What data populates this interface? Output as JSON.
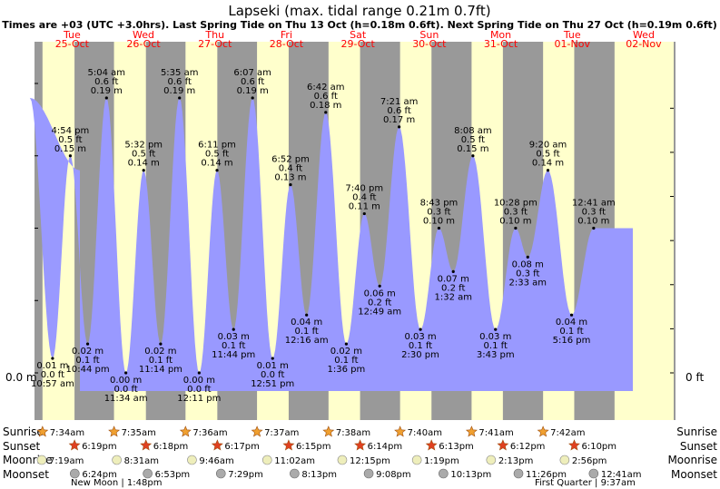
{
  "title": "Lapseki (max. tidal range 0.21m 0.7ft)",
  "subtitle": "Times are +03 (UTC +3.0hrs). Last Spring Tide on Thu 13 Oct (h=0.18m 0.6ft). Next Spring Tide on Thu 27 Oct (h=0.19m 0.6ft)",
  "colors": {
    "night": "#999999",
    "day": "#ffffcc",
    "tide_fill": "#9999ff",
    "day_label": "#ff0000",
    "sun_icon": "#f0a030",
    "sunset_icon": "#e04020",
    "moon_icon": "#eeeebb",
    "moonset_icon": "#aaaaaa"
  },
  "axis": {
    "left_zero_label": "0.0 m",
    "right_zero_label": "0 ft"
  },
  "row_labels": {
    "sunrise": "Sunrise",
    "sunset": "Sunset",
    "moonrise": "Moonrise",
    "moonset": "Moonset"
  },
  "chart_data": {
    "type": "area",
    "y_unit": "m",
    "ylim": [
      0,
      0.21
    ],
    "days": [
      {
        "dow": "Tue",
        "date": "25-Oct"
      },
      {
        "dow": "Wed",
        "date": "26-Oct"
      },
      {
        "dow": "Thu",
        "date": "27-Oct"
      },
      {
        "dow": "Fri",
        "date": "28-Oct"
      },
      {
        "dow": "Sat",
        "date": "29-Oct"
      },
      {
        "dow": "Sun",
        "date": "30-Oct"
      },
      {
        "dow": "Mon",
        "date": "31-Oct"
      },
      {
        "dow": "Tue",
        "date": "01-Nov"
      },
      {
        "dow": "Wed",
        "date": "02-Nov"
      }
    ],
    "tides": [
      {
        "type": "low",
        "day": 0,
        "time": "10:57 am",
        "m": "0.01 m",
        "ft": "0.0 ft",
        "value": 0.01
      },
      {
        "type": "high",
        "day": 0,
        "time": "4:54 pm",
        "ft": "0.5 ft",
        "m": "0.15 m",
        "value": 0.15
      },
      {
        "type": "low",
        "day": 0,
        "time": "10:44 pm",
        "m": "0.02 m",
        "ft": "0.1 ft",
        "value": 0.02
      },
      {
        "type": "high",
        "day": 1,
        "time": "5:04 am",
        "ft": "0.6 ft",
        "m": "0.19 m",
        "value": 0.19
      },
      {
        "type": "low",
        "day": 1,
        "time": "11:34 am",
        "m": "0.00 m",
        "ft": "0.0 ft",
        "value": 0.0
      },
      {
        "type": "high",
        "day": 1,
        "time": "5:32 pm",
        "ft": "0.5 ft",
        "m": "0.14 m",
        "value": 0.14
      },
      {
        "type": "low",
        "day": 1,
        "time": "11:14 pm",
        "m": "0.02 m",
        "ft": "0.1 ft",
        "value": 0.02
      },
      {
        "type": "high",
        "day": 2,
        "time": "5:35 am",
        "ft": "0.6 ft",
        "m": "0.19 m",
        "value": 0.19
      },
      {
        "type": "low",
        "day": 2,
        "time": "12:11 pm",
        "m": "0.00 m",
        "ft": "0.0 ft",
        "value": 0.0
      },
      {
        "type": "high",
        "day": 2,
        "time": "6:11 pm",
        "ft": "0.5 ft",
        "m": "0.14 m",
        "value": 0.14
      },
      {
        "type": "low",
        "day": 2,
        "time": "11:44 pm",
        "m": "0.03 m",
        "ft": "0.1 ft",
        "value": 0.03
      },
      {
        "type": "high",
        "day": 3,
        "time": "6:07 am",
        "ft": "0.6 ft",
        "m": "0.19 m",
        "value": 0.19
      },
      {
        "type": "low",
        "day": 3,
        "time": "12:51 pm",
        "m": "0.01 m",
        "ft": "0.0 ft",
        "value": 0.01
      },
      {
        "type": "high",
        "day": 3,
        "time": "6:52 pm",
        "ft": "0.4 ft",
        "m": "0.13 m",
        "value": 0.13
      },
      {
        "type": "low",
        "day": 4,
        "time": "12:16 am",
        "m": "0.04 m",
        "ft": "0.1 ft",
        "value": 0.04
      },
      {
        "type": "high",
        "day": 4,
        "time": "6:42 am",
        "ft": "0.6 ft",
        "m": "0.18 m",
        "value": 0.18
      },
      {
        "type": "low",
        "day": 4,
        "time": "1:36 pm",
        "m": "0.02 m",
        "ft": "0.1 ft",
        "value": 0.02
      },
      {
        "type": "high",
        "day": 4,
        "time": "7:40 pm",
        "ft": "0.4 ft",
        "m": "0.11 m",
        "value": 0.11
      },
      {
        "type": "low",
        "day": 5,
        "time": "12:49 am",
        "m": "0.06 m",
        "ft": "0.2 ft",
        "value": 0.06
      },
      {
        "type": "high",
        "day": 5,
        "time": "7:21 am",
        "ft": "0.6 ft",
        "m": "0.17 m",
        "value": 0.17
      },
      {
        "type": "low",
        "day": 5,
        "time": "2:30 pm",
        "m": "0.03 m",
        "ft": "0.1 ft",
        "value": 0.03
      },
      {
        "type": "high",
        "day": 5,
        "time": "8:43 pm",
        "ft": "0.3 ft",
        "m": "0.10 m",
        "value": 0.1
      },
      {
        "type": "low",
        "day": 6,
        "time": "1:32 am",
        "m": "0.07 m",
        "ft": "0.2 ft",
        "value": 0.07
      },
      {
        "type": "high",
        "day": 6,
        "time": "8:08 am",
        "ft": "0.5 ft",
        "m": "0.15 m",
        "value": 0.15
      },
      {
        "type": "low",
        "day": 6,
        "time": "3:43 pm",
        "m": "0.03 m",
        "ft": "0.1 ft",
        "value": 0.03
      },
      {
        "type": "high",
        "day": 6,
        "time": "10:28 pm",
        "ft": "0.3 ft",
        "m": "0.10 m",
        "value": 0.1
      },
      {
        "type": "low",
        "day": 7,
        "time": "2:33 am",
        "m": "0.08 m",
        "ft": "0.3 ft",
        "value": 0.08
      },
      {
        "type": "high",
        "day": 7,
        "time": "9:20 am",
        "ft": "0.5 ft",
        "m": "0.14 m",
        "value": 0.14
      },
      {
        "type": "low",
        "day": 7,
        "time": "5:16 pm",
        "m": "0.04 m",
        "ft": "0.1 ft",
        "value": 0.04
      },
      {
        "type": "high",
        "day": 8,
        "time": "12:41 am",
        "ft": "0.3 ft",
        "m": "0.10 m",
        "value": 0.1
      }
    ],
    "sunrise": [
      "7:34am",
      "7:35am",
      "7:36am",
      "7:37am",
      "7:38am",
      "7:40am",
      "7:41am",
      "7:42am"
    ],
    "sunset": [
      "6:19pm",
      "6:18pm",
      "6:17pm",
      "6:15pm",
      "6:14pm",
      "6:13pm",
      "6:12pm",
      "6:10pm"
    ],
    "moonrise": [
      {
        "day": 0,
        "time": "7:19am"
      },
      {
        "day": 1,
        "time": "8:31am"
      },
      {
        "day": 2,
        "time": "9:46am"
      },
      {
        "day": 3,
        "time": "11:02am"
      },
      {
        "day": 4,
        "time": "12:15pm"
      },
      {
        "day": 5,
        "time": "1:19pm"
      },
      {
        "day": 6,
        "time": "2:13pm"
      },
      {
        "day": 7,
        "time": "2:56pm"
      }
    ],
    "moonset": [
      {
        "day": 0,
        "time": "6:24pm"
      },
      {
        "day": 1,
        "time": "6:53pm"
      },
      {
        "day": 2,
        "time": "7:29pm"
      },
      {
        "day": 3,
        "time": "8:13pm"
      },
      {
        "day": 4,
        "time": "9:08pm"
      },
      {
        "day": 5,
        "time": "10:13pm"
      },
      {
        "day": 6,
        "time": "11:26pm"
      },
      {
        "day": 8,
        "time": "12:41am"
      }
    ],
    "moon_phases": [
      {
        "label": "New Moon",
        "time": "1:48pm"
      },
      {
        "label": "First Quarter",
        "time": "9:37am"
      }
    ]
  }
}
